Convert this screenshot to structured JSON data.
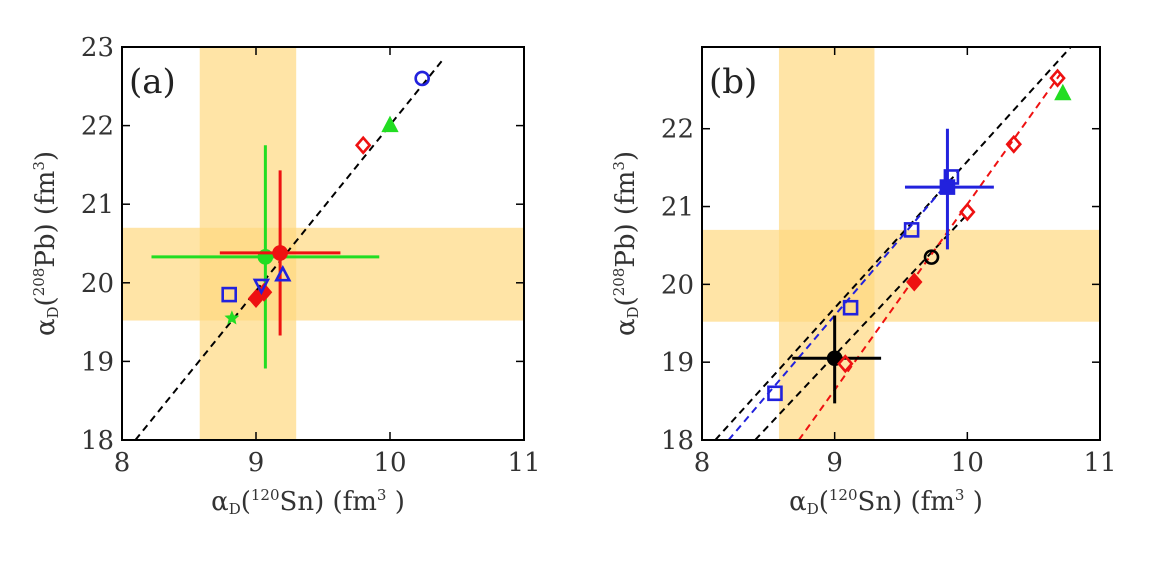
{
  "colors": {
    "band": "#ffd980",
    "red": "#ee1111",
    "blue": "#2222dd",
    "green": "#22dd22",
    "black": "#000000"
  },
  "chart_data": [
    {
      "type": "scatter",
      "panel_label": "(a)",
      "xlabel": {
        "main": "α",
        "sub": "D",
        "open": "(",
        "sup": "120",
        "elem": "Sn) (fm",
        "pow": "3",
        "close": " )"
      },
      "ylabel": {
        "main": "α",
        "sub": "D",
        "open": "(",
        "sup": "208",
        "elem": "Pb) (fm",
        "pow": "3",
        "close": ")"
      },
      "xlim": [
        8,
        11
      ],
      "ylim": [
        18,
        23
      ],
      "xticks": [
        "8",
        "9",
        "10",
        "11"
      ],
      "yticks": [
        "18",
        "19",
        "20",
        "21",
        "22",
        "23"
      ],
      "bands": {
        "x": [
          8.58,
          9.3
        ],
        "y": [
          19.52,
          20.7
        ]
      },
      "lines": [
        {
          "color": "black",
          "x": [
            8.1,
            10.4
          ],
          "y": [
            18.0,
            22.85
          ]
        }
      ],
      "points": [
        {
          "x": 10.24,
          "y": 22.6,
          "marker": "circle",
          "fill": "open",
          "color": "blue"
        },
        {
          "x": 10.0,
          "y": 22.0,
          "marker": "triangle",
          "fill": "filled",
          "color": "green"
        },
        {
          "x": 9.8,
          "y": 21.75,
          "marker": "diamond",
          "fill": "open",
          "color": "red"
        },
        {
          "x": 8.8,
          "y": 19.85,
          "marker": "square",
          "fill": "open",
          "color": "blue"
        },
        {
          "x": 8.82,
          "y": 19.55,
          "marker": "star",
          "fill": "filled",
          "color": "green"
        },
        {
          "x": 9.0,
          "y": 19.8,
          "marker": "diamond",
          "fill": "filled",
          "color": "red"
        },
        {
          "x": 9.06,
          "y": 19.88,
          "marker": "diamond",
          "fill": "filled",
          "color": "red"
        },
        {
          "x": 9.04,
          "y": 19.97,
          "marker": "triangle-down",
          "fill": "open",
          "color": "blue"
        },
        {
          "x": 9.2,
          "y": 20.1,
          "marker": "triangle",
          "fill": "open",
          "color": "blue"
        }
      ],
      "error_points": [
        {
          "x": 9.07,
          "y": 20.33,
          "xerr": [
            0.85,
            0.85
          ],
          "yerr": [
            1.42,
            1.42
          ],
          "color": "green"
        },
        {
          "x": 9.18,
          "y": 20.38,
          "xerr": [
            0.45,
            0.45
          ],
          "yerr": [
            1.05,
            1.05
          ],
          "color": "red"
        }
      ]
    },
    {
      "type": "scatter",
      "panel_label": "(b)",
      "xlabel": {
        "main": "α",
        "sub": "D",
        "open": "(",
        "sup": "120",
        "elem": "Sn) (fm",
        "pow": "3",
        "close": " )"
      },
      "ylabel": {
        "main": "α",
        "sub": "D",
        "open": "(",
        "sup": "208",
        "elem": "Pb) (fm",
        "pow": "3",
        "close": ")"
      },
      "xlim": [
        8,
        11
      ],
      "ylim": [
        18,
        23.05
      ],
      "xticks": [
        "8",
        "9",
        "10",
        "11"
      ],
      "yticks": [
        "18",
        "19",
        "20",
        "21",
        "22"
      ],
      "bands": {
        "x": [
          8.58,
          9.3
        ],
        "y": [
          19.52,
          20.7
        ]
      },
      "lines": [
        {
          "color": "black",
          "x": [
            8.1,
            10.78
          ],
          "y": [
            18.0,
            23.05
          ]
        },
        {
          "color": "black",
          "x": [
            8.4,
            10.0
          ],
          "y": [
            18.0,
            20.9
          ]
        },
        {
          "color": "blue",
          "x": [
            8.2,
            9.9
          ],
          "y": [
            18.0,
            21.4
          ]
        },
        {
          "color": "red",
          "x": [
            8.73,
            10.7
          ],
          "y": [
            18.0,
            22.7
          ]
        }
      ],
      "points": [
        {
          "x": 8.55,
          "y": 18.6,
          "marker": "square",
          "fill": "open",
          "color": "blue"
        },
        {
          "x": 9.12,
          "y": 19.7,
          "marker": "square",
          "fill": "open",
          "color": "blue"
        },
        {
          "x": 9.58,
          "y": 20.7,
          "marker": "square",
          "fill": "open",
          "color": "blue"
        },
        {
          "x": 9.88,
          "y": 21.38,
          "marker": "square",
          "fill": "open",
          "color": "blue"
        },
        {
          "x": 9.08,
          "y": 18.98,
          "marker": "diamond",
          "fill": "open",
          "color": "red"
        },
        {
          "x": 9.6,
          "y": 20.03,
          "marker": "diamond",
          "fill": "filled",
          "color": "red"
        },
        {
          "x": 10.0,
          "y": 20.93,
          "marker": "diamond",
          "fill": "open",
          "color": "red"
        },
        {
          "x": 10.35,
          "y": 21.8,
          "marker": "diamond",
          "fill": "open",
          "color": "red"
        },
        {
          "x": 10.68,
          "y": 22.65,
          "marker": "diamond",
          "fill": "open",
          "color": "red"
        },
        {
          "x": 10.72,
          "y": 22.45,
          "marker": "triangle",
          "fill": "filled",
          "color": "green"
        },
        {
          "x": 9.73,
          "y": 20.35,
          "marker": "circle",
          "fill": "open",
          "color": "black"
        }
      ],
      "error_points": [
        {
          "x": 9.85,
          "y": 21.25,
          "xerr": [
            0.32,
            0.35
          ],
          "yerr": [
            0.8,
            0.75
          ],
          "color": "blue",
          "marker": "square"
        },
        {
          "x": 9.0,
          "y": 19.05,
          "xerr": [
            0.32,
            0.35
          ],
          "yerr": [
            0.58,
            0.55
          ],
          "color": "black",
          "marker": "circle"
        }
      ]
    }
  ]
}
